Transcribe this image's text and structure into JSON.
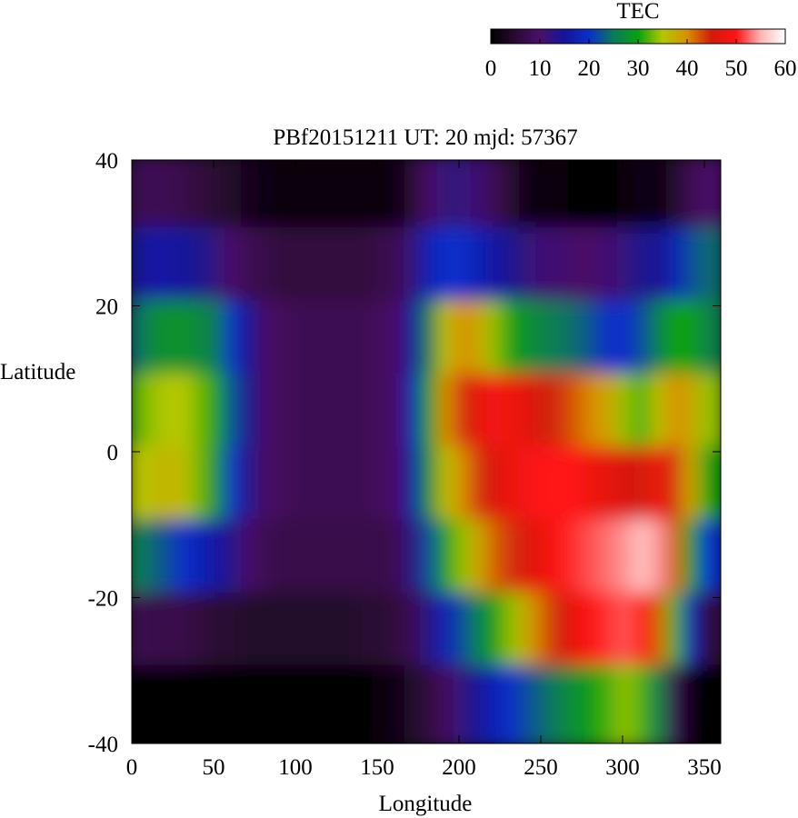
{
  "chart_data": {
    "type": "heatmap",
    "title": "PBf20151211  UT: 20  mjd: 57367",
    "xlabel": "Longitude",
    "ylabel": "Latitude",
    "xlim": [
      0,
      360
    ],
    "ylim": [
      -40,
      40
    ],
    "x_ticks": [
      "0",
      "50",
      "100",
      "150",
      "200",
      "250",
      "300",
      "350"
    ],
    "y_ticks": [
      "40",
      "20",
      "0",
      "-20",
      "-40"
    ],
    "grid": false,
    "colorbar": {
      "label": "TEC",
      "range": [
        0,
        60
      ],
      "ticks": [
        "0",
        "10",
        "20",
        "30",
        "40",
        "50",
        "60"
      ],
      "placement": "top-right",
      "colors": [
        "#000000",
        "#2a0a33",
        "#4a1068",
        "#14149a",
        "#0a2fc8",
        "#0a7a5a",
        "#0aa010",
        "#b4c800",
        "#d89000",
        "#d21a0a",
        "#ff1414",
        "#ffb4b4",
        "#ffffff"
      ]
    },
    "grid_resolution": {
      "lon_step_deg": 10,
      "lat_step_deg": 10
    },
    "longitudes": [
      0,
      10,
      20,
      30,
      40,
      50,
      60,
      70,
      80,
      90,
      100,
      110,
      120,
      130,
      140,
      150,
      160,
      170,
      180,
      190,
      200,
      210,
      220,
      230,
      240,
      250,
      260,
      270,
      280,
      290,
      300,
      310,
      320,
      330,
      340,
      350
    ],
    "latitudes": [
      35,
      25,
      15,
      5,
      -5,
      -15,
      -25,
      -35
    ],
    "values": [
      [
        8,
        8,
        8,
        7,
        6,
        5,
        4,
        3,
        2,
        1,
        1,
        1,
        1,
        1,
        1,
        1,
        2,
        5,
        10,
        12,
        12,
        11,
        8,
        5,
        2,
        1,
        1,
        0,
        0,
        0,
        1,
        2,
        1,
        4,
        8,
        10
      ],
      [
        14,
        16,
        16,
        15,
        14,
        12,
        10,
        8,
        7,
        6,
        6,
        6,
        6,
        6,
        6,
        7,
        8,
        12,
        18,
        20,
        20,
        18,
        16,
        14,
        12,
        11,
        11,
        10,
        10,
        11,
        12,
        14,
        14,
        18,
        22,
        24
      ],
      [
        24,
        27,
        28,
        28,
        27,
        25,
        20,
        14,
        10,
        9,
        8,
        8,
        8,
        8,
        8,
        9,
        10,
        16,
        26,
        36,
        40,
        38,
        34,
        30,
        28,
        26,
        25,
        24,
        22,
        20,
        20,
        22,
        26,
        30,
        30,
        26
      ],
      [
        32,
        34,
        35,
        35,
        33,
        30,
        22,
        14,
        10,
        9,
        8,
        8,
        8,
        8,
        8,
        9,
        10,
        18,
        30,
        40,
        44,
        47,
        49,
        48,
        47,
        45,
        44,
        42,
        40,
        38,
        34,
        32,
        36,
        40,
        38,
        34
      ],
      [
        35,
        36,
        37,
        36,
        33,
        28,
        20,
        13,
        10,
        9,
        8,
        8,
        8,
        8,
        8,
        9,
        10,
        17,
        28,
        36,
        40,
        44,
        46,
        48,
        49,
        50,
        50,
        50,
        48,
        47,
        46,
        45,
        48,
        44,
        38,
        30
      ],
      [
        26,
        24,
        22,
        20,
        18,
        16,
        13,
        10,
        8,
        7,
        7,
        7,
        7,
        7,
        7,
        7,
        8,
        13,
        22,
        30,
        34,
        38,
        42,
        44,
        46,
        48,
        50,
        51,
        52,
        53,
        54,
        56,
        54,
        42,
        30,
        20
      ],
      [
        8,
        7,
        7,
        7,
        6,
        5,
        5,
        4,
        4,
        4,
        4,
        4,
        4,
        4,
        5,
        5,
        6,
        8,
        13,
        18,
        22,
        26,
        30,
        34,
        38,
        42,
        45,
        48,
        50,
        51,
        52,
        50,
        42,
        32,
        18,
        6
      ],
      [
        0,
        0,
        0,
        0,
        0,
        0,
        0,
        0,
        0,
        0,
        0,
        0,
        0,
        0,
        0,
        1,
        2,
        4,
        6,
        9,
        12,
        15,
        18,
        20,
        22,
        24,
        26,
        28,
        30,
        32,
        34,
        32,
        26,
        8,
        2,
        0
      ]
    ]
  }
}
